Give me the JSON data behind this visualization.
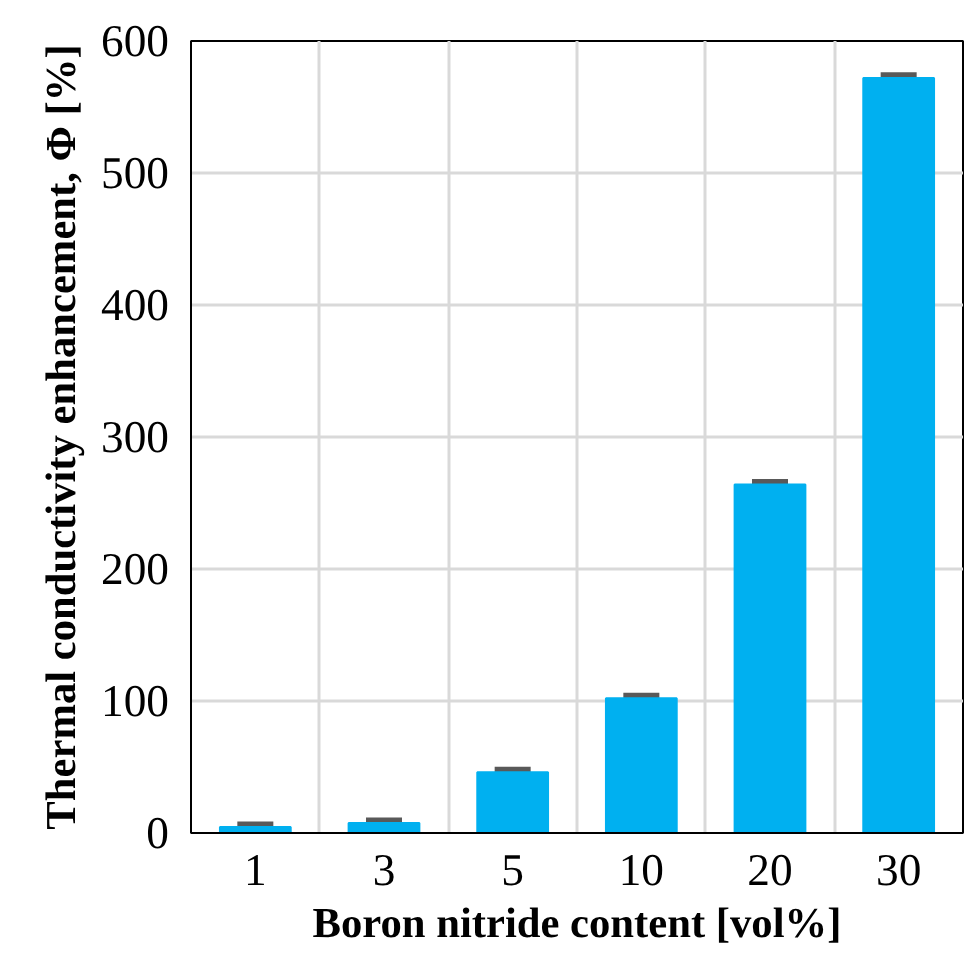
{
  "chart_data": {
    "type": "bar",
    "xlabel": "Boron nitride content [vol%]",
    "ylabel": "Thermal conductivity enhancement, Φ [%]",
    "categories": [
      "1",
      "3",
      "5",
      "10",
      "20",
      "30"
    ],
    "values": [
      4.5,
      7.5,
      46,
      102,
      264,
      572
    ],
    "errors": [
      2,
      2,
      2,
      2,
      2,
      2
    ],
    "color": "#00b0f0",
    "ylim": [
      0,
      600
    ],
    "yticks": [
      0,
      100,
      200,
      300,
      400,
      500,
      600
    ],
    "grid": true
  }
}
